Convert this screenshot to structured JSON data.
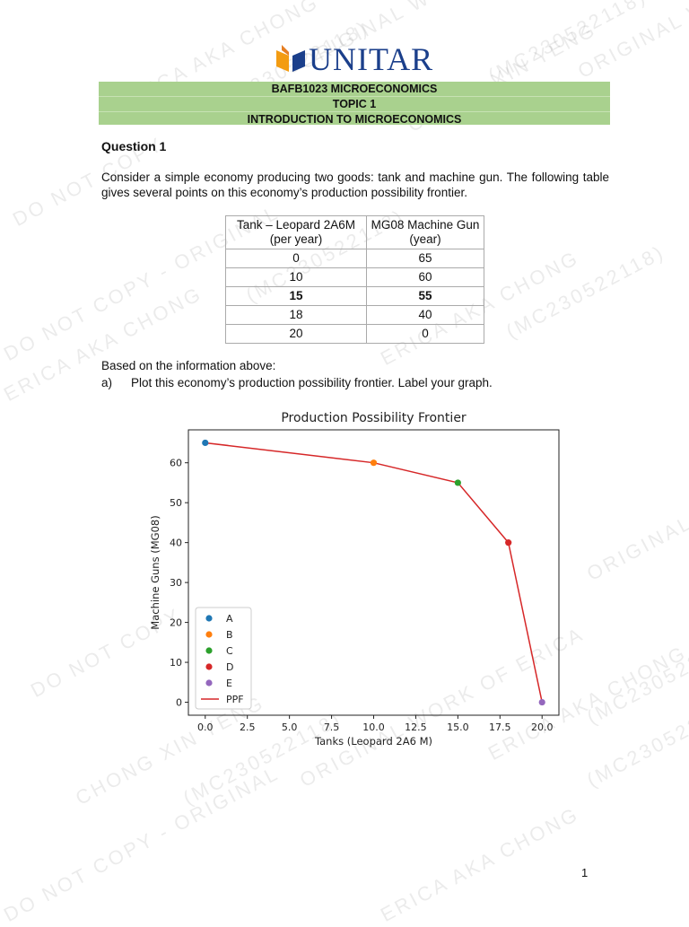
{
  "watermark": [
    "ERICA AKA CHONG",
    "(MC230522118)",
    "ORIGINAL WORK OF",
    "DO NOT COPY",
    "CHONG XIN YENG",
    "(MC230522118)",
    "ORIGINAL WORK OF ERICA",
    "DO NOT COPY - ORIGINAL",
    "ERICA AKA CHONG",
    "(MC230522118)"
  ],
  "logo": {
    "text": "UNITAR"
  },
  "header": {
    "line1": "BAFB1023 MICROECONOMICS",
    "line2": "TOPIC 1",
    "line3": "INTRODUCTION TO MICROECONOMICS"
  },
  "question": {
    "title": "Question 1",
    "text": "Consider a simple economy producing two goods: tank and machine gun. The following table gives several points on this economy’s production possibility frontier."
  },
  "table": {
    "headers": [
      [
        "Tank – Leopard 2A6M",
        "(per year)"
      ],
      [
        "MG08 Machine Gun",
        "(year)"
      ]
    ],
    "rows": [
      [
        "0",
        "65"
      ],
      [
        "10",
        "60"
      ],
      [
        "15",
        "55"
      ],
      [
        "18",
        "40"
      ],
      [
        "20",
        "0"
      ]
    ],
    "bold_row": 2
  },
  "based_on": "Based on the information above:",
  "part_a": {
    "label": "a)",
    "text": "Plot this economy’s production possibility frontier. Label your graph."
  },
  "chart_data": {
    "type": "line",
    "title": "Production Possibility Frontier",
    "xlabel": "Tanks (Leopard 2A6 M)",
    "ylabel": "Machine Guns (MG08)",
    "xlim": [
      -1,
      21
    ],
    "ylim": [
      -3.25,
      68.25
    ],
    "xticks": [
      "0.0",
      "2.5",
      "5.0",
      "7.5",
      "10.0",
      "12.5",
      "15.0",
      "17.5",
      "20.0"
    ],
    "yticks": [
      "0",
      "10",
      "20",
      "30",
      "40",
      "50",
      "60"
    ],
    "points": [
      {
        "name": "A",
        "x": 0,
        "y": 65,
        "color": "#1f77b4"
      },
      {
        "name": "B",
        "x": 10,
        "y": 60,
        "color": "#ff7f0e"
      },
      {
        "name": "C",
        "x": 15,
        "y": 55,
        "color": "#2ca02c"
      },
      {
        "name": "D",
        "x": 18,
        "y": 40,
        "color": "#d62728"
      },
      {
        "name": "E",
        "x": 20,
        "y": 0,
        "color": "#9467bd"
      }
    ],
    "line": {
      "name": "PPF",
      "color": "#d62728"
    },
    "legend": "lower-left",
    "grid": false
  },
  "page_number": "1"
}
